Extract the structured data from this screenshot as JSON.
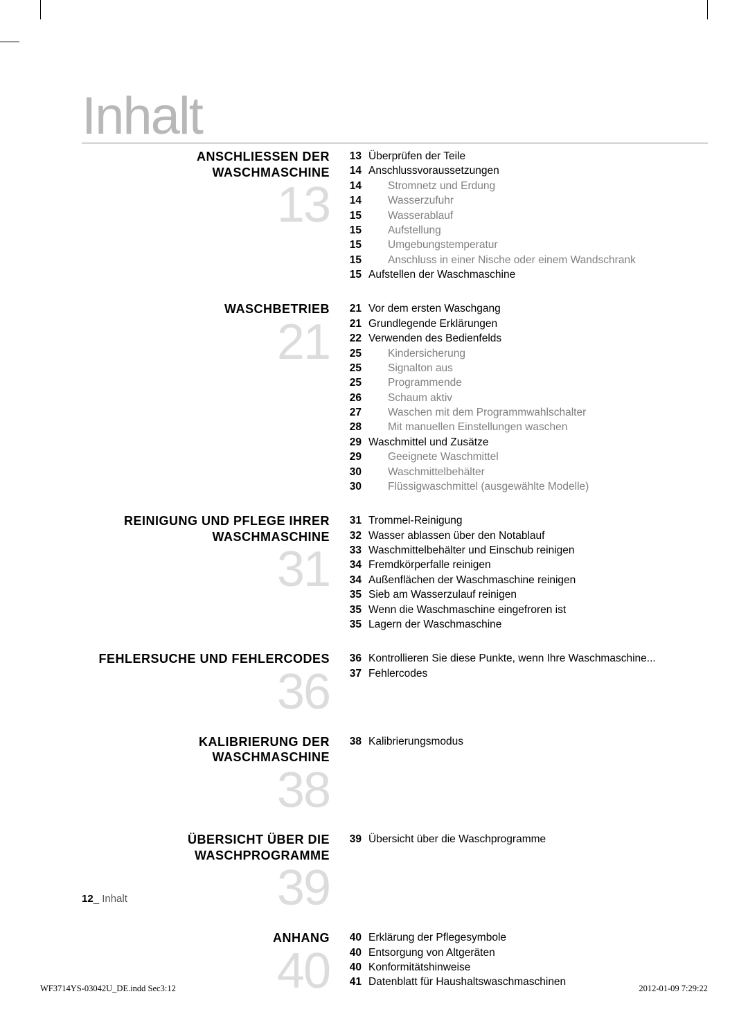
{
  "page_title": "Inhalt",
  "footer": {
    "page_number": "12",
    "label": "_ Inhalt"
  },
  "imprint": {
    "filename": "WF3714YS-03042U_DE.indd   Sec3:12",
    "datetime": "2012-01-09   7:29:22"
  },
  "sections": [
    {
      "title_lines": [
        "ANSCHLIESSEN DER",
        "WASCHMASCHINE"
      ],
      "number": "13",
      "entries": [
        {
          "page": "13",
          "text": "Überprüfen der Teile",
          "indent": false
        },
        {
          "page": "14",
          "text": "Anschlussvoraussetzungen",
          "indent": false
        },
        {
          "page": "14",
          "text": "Stromnetz und Erdung",
          "indent": true
        },
        {
          "page": "14",
          "text": "Wasserzufuhr",
          "indent": true
        },
        {
          "page": "15",
          "text": "Wasserablauf",
          "indent": true
        },
        {
          "page": "15",
          "text": "Aufstellung",
          "indent": true
        },
        {
          "page": "15",
          "text": "Umgebungstemperatur",
          "indent": true
        },
        {
          "page": "15",
          "text": "Anschluss in einer Nische oder einem Wandschrank",
          "indent": true
        },
        {
          "page": "15",
          "text": "Aufstellen der Waschmaschine",
          "indent": false
        }
      ]
    },
    {
      "title_lines": [
        "WASCHBETRIEB"
      ],
      "number": "21",
      "entries": [
        {
          "page": "21",
          "text": "Vor dem ersten Waschgang",
          "indent": false
        },
        {
          "page": "21",
          "text": "Grundlegende Erklärungen",
          "indent": false
        },
        {
          "page": "22",
          "text": "Verwenden des Bedienfelds",
          "indent": false
        },
        {
          "page": "25",
          "text": "Kindersicherung",
          "indent": true
        },
        {
          "page": "25",
          "text": "Signalton aus",
          "indent": true
        },
        {
          "page": "25",
          "text": "Programmende",
          "indent": true
        },
        {
          "page": "26",
          "text": "Schaum aktiv",
          "indent": true
        },
        {
          "page": "27",
          "text": "Waschen mit dem Programmwahlschalter",
          "indent": true
        },
        {
          "page": "28",
          "text": "Mit manuellen Einstellungen waschen",
          "indent": true
        },
        {
          "page": "29",
          "text": "Waschmittel und Zusätze",
          "indent": false
        },
        {
          "page": "29",
          "text": "Geeignete Waschmittel",
          "indent": true
        },
        {
          "page": "30",
          "text": "Waschmittelbehälter",
          "indent": true
        },
        {
          "page": "30",
          "text": "Flüssigwaschmittel (ausgewählte Modelle)",
          "indent": true
        }
      ]
    },
    {
      "title_lines": [
        "REINIGUNG UND PFLEGE IHRER",
        "WASCHMASCHINE"
      ],
      "number": "31",
      "entries": [
        {
          "page": "31",
          "text": "Trommel-Reinigung",
          "indent": false
        },
        {
          "page": "32",
          "text": "Wasser ablassen über den Notablauf",
          "indent": false
        },
        {
          "page": "33",
          "text": "Waschmittelbehälter und Einschub reinigen",
          "indent": false
        },
        {
          "page": "34",
          "text": "Fremdkörperfalle reinigen",
          "indent": false
        },
        {
          "page": "34",
          "text": "Außenflächen der Waschmaschine reinigen",
          "indent": false
        },
        {
          "page": "35",
          "text": "Sieb am Wasserzulauf reinigen",
          "indent": false
        },
        {
          "page": "35",
          "text": "Wenn die Waschmaschine eingefroren ist",
          "indent": false
        },
        {
          "page": "35",
          "text": "Lagern der Waschmaschine",
          "indent": false
        }
      ]
    },
    {
      "title_lines": [
        "FEHLERSUCHE UND FEHLERCODES"
      ],
      "number": "36",
      "entries": [
        {
          "page": "36",
          "text": "Kontrollieren Sie diese Punkte, wenn Ihre Waschmaschine...",
          "indent": false
        },
        {
          "page": "37",
          "text": "Fehlercodes",
          "indent": false
        }
      ]
    },
    {
      "title_lines": [
        "KALIBRIERUNG DER",
        "WASCHMASCHINE"
      ],
      "number": "38",
      "entries": [
        {
          "page": "38",
          "text": "Kalibrierungsmodus",
          "indent": false
        }
      ]
    },
    {
      "title_lines": [
        "ÜBERSICHT ÜBER DIE",
        "WASCHPROGRAMME"
      ],
      "number": "39",
      "entries": [
        {
          "page": "39",
          "text": "Übersicht über die Waschprogramme",
          "indent": false
        }
      ]
    },
    {
      "title_lines": [
        "ANHANG"
      ],
      "number": "40",
      "entries": [
        {
          "page": "40",
          "text": "Erklärung der Pflegesymbole",
          "indent": false
        },
        {
          "page": "40",
          "text": "Entsorgung von Altgeräten",
          "indent": false
        },
        {
          "page": "40",
          "text": "Konformitätshinweise",
          "indent": false
        },
        {
          "page": "41",
          "text": "Datenblatt für Haushaltswaschmaschinen",
          "indent": false
        }
      ]
    }
  ]
}
